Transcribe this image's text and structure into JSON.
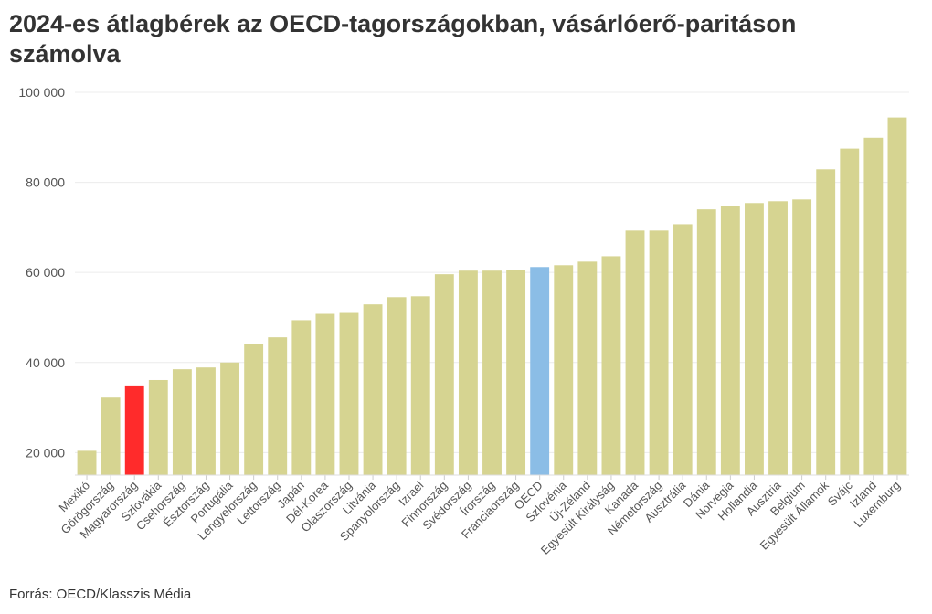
{
  "chart_data": {
    "type": "bar",
    "title": "2024-es átlagbérek az OECD-tagországokban, vásárlóerő-paritáson számolva",
    "source": "Forrás: OECD/Klasszis Média",
    "xlabel": "",
    "ylabel": "",
    "ylim": [
      15000,
      100000
    ],
    "yticks": [
      20000,
      40000,
      60000,
      80000,
      100000
    ],
    "ytick_labels": [
      "20 000",
      "40 000",
      "60 000",
      "80 000",
      "100 000"
    ],
    "grid": true,
    "colors": {
      "default": "#d6d491",
      "highlight_hu": "#ff2b2b",
      "highlight_oecd": "#8bbde6"
    },
    "categories": [
      "Mexikó",
      "Görögország",
      "Magyarország",
      "Szlovákia",
      "Csehország",
      "Észtország",
      "Portugália",
      "Lengyelország",
      "Lettország",
      "Japán",
      "Dél-Korea",
      "Olaszország",
      "Litvánia",
      "Spanyolország",
      "Izrael",
      "Finnország",
      "Svédország",
      "Írország",
      "Franciaország",
      "OECD",
      "Szlovénia",
      "Új-Zéland",
      "Egyesült Királyság",
      "Kanada",
      "Németország",
      "Ausztrália",
      "Dánia",
      "Norvégia",
      "Hollandia",
      "Ausztria",
      "Belgium",
      "Egyesült Államok",
      "Svájc",
      "Izland",
      "Luxemburg"
    ],
    "values": [
      20400,
      32200,
      34900,
      36100,
      38500,
      38900,
      40000,
      44200,
      45600,
      49400,
      50800,
      51000,
      52900,
      54500,
      54700,
      59600,
      60400,
      60400,
      60600,
      61200,
      61600,
      62400,
      63600,
      69300,
      69300,
      70700,
      74000,
      74800,
      75400,
      75800,
      76200,
      82900,
      87500,
      89900,
      94400
    ],
    "highlight": {
      "Magyarország": "highlight_hu",
      "OECD": "highlight_oecd"
    }
  }
}
